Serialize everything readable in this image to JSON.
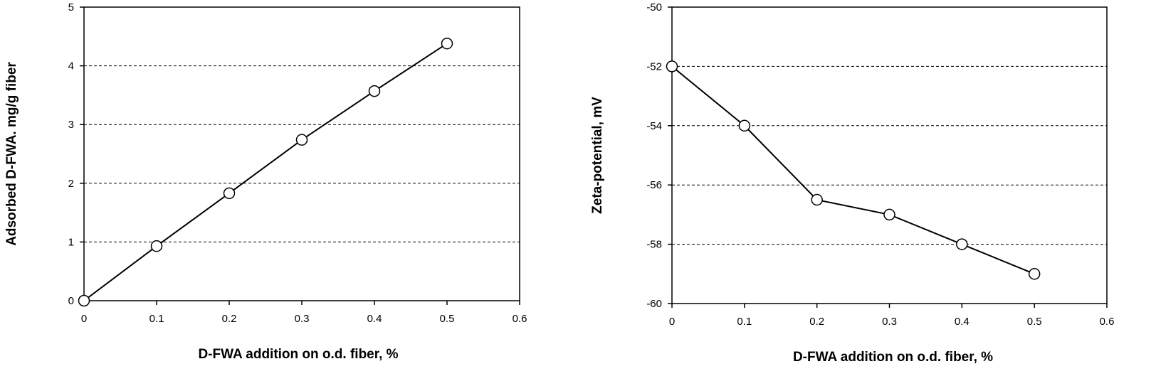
{
  "chart_data": [
    {
      "type": "line",
      "title": "",
      "xlabel": "D-FWA addition on o.d. fiber, %",
      "ylabel": "Adsorbed D-FWA. mg/g fiber",
      "xlim": [
        0,
        0.6
      ],
      "ylim": [
        0,
        5
      ],
      "xticks": [
        "0",
        "0.1",
        "0.2",
        "0.3",
        "0.4",
        "0.5",
        "0.6"
      ],
      "yticks": [
        "0",
        "1",
        "2",
        "3",
        "4",
        "5"
      ],
      "grid": "horizontal dashed",
      "series": [
        {
          "x": [
            0,
            0.1,
            0.2,
            0.3,
            0.4,
            0.5
          ],
          "y": [
            0,
            0.93,
            1.83,
            2.74,
            3.57,
            4.38
          ]
        }
      ]
    },
    {
      "type": "line",
      "title": "",
      "xlabel": "D-FWA addition on o.d. fiber, %",
      "ylabel": "Zeta-potential,  mV",
      "xlim": [
        0,
        0.6
      ],
      "ylim": [
        -60,
        -50
      ],
      "xticks": [
        "0",
        "0.1",
        "0.2",
        "0.3",
        "0.4",
        "0.5",
        "0.6"
      ],
      "yticks": [
        "-60",
        "-58",
        "-56",
        "-54",
        "-52",
        "-50"
      ],
      "grid": "horizontal dashed",
      "series": [
        {
          "x": [
            0,
            0.1,
            0.2,
            0.3,
            0.4,
            0.5
          ],
          "y": [
            -52,
            -54,
            -56.5,
            -57,
            -58,
            -59
          ]
        }
      ]
    }
  ]
}
